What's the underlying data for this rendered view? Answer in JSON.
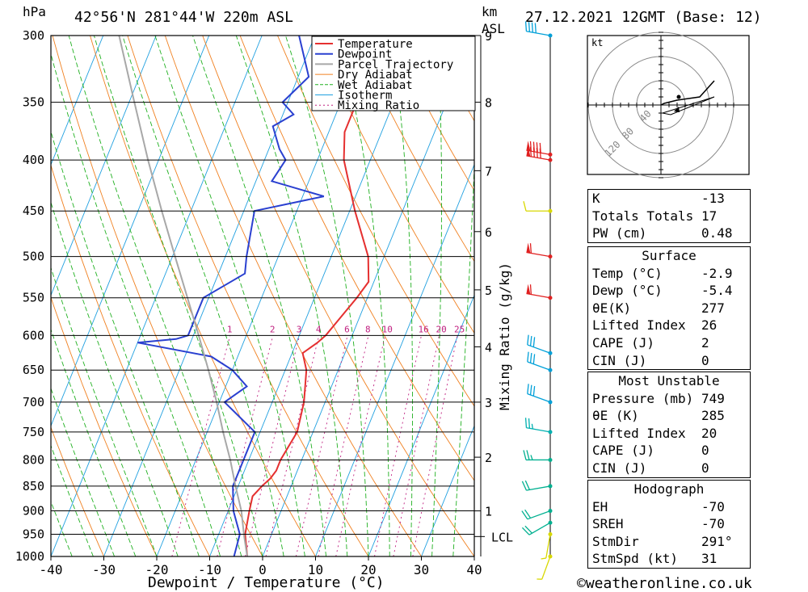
{
  "header": {
    "pressure_unit": "hPa",
    "location": "42°56'N  281°44'W  220m  ASL",
    "km_unit": "km",
    "asl_unit": "ASL",
    "datetime": "27.12.2021  12GMT  (Base: 12)"
  },
  "chart_data": {
    "type": "line",
    "title": "42°56'N  281°44'W  220m  ASL",
    "xlabel": "Dewpoint / Temperature (°C)",
    "ylabel": "hPa",
    "xlim": [
      -40,
      40
    ],
    "ylim": [
      1000,
      300
    ],
    "y_scale": "log",
    "x_ticks": [
      "-40",
      "-30",
      "-20",
      "-10",
      "0",
      "10",
      "20",
      "30",
      "40"
    ],
    "pressure_levels": [
      300,
      350,
      400,
      450,
      500,
      550,
      600,
      650,
      700,
      750,
      800,
      850,
      900,
      950,
      1000
    ],
    "km_ticks": [
      {
        "km": "1",
        "p": 900
      },
      {
        "km": "2",
        "p": 795
      },
      {
        "km": "3",
        "p": 700
      },
      {
        "km": "4",
        "p": 616
      },
      {
        "km": "5",
        "p": 540
      },
      {
        "km": "6",
        "p": 472
      },
      {
        "km": "7",
        "p": 410
      },
      {
        "km": "8",
        "p": 350
      },
      {
        "km": "9",
        "p": 300
      }
    ],
    "lcl_label": "LCL",
    "lcl_pressure": 955,
    "mixing_ratio_label": "Mixing Ratio (g/kg)",
    "mixing_ratio_values": [
      "1",
      "2",
      "3",
      "4",
      "6",
      "8",
      "10",
      "16",
      "20",
      "25"
    ],
    "legend": [
      "Temperature",
      "Dewpoint",
      "Parcel Trajectory",
      "Dry Adiabat",
      "Wet Adiabat",
      "Isotherm",
      "Mixing Ratio"
    ],
    "series": [
      {
        "name": "Temperature",
        "color": "#e53030",
        "points": [
          [
            1000,
            -2.9
          ],
          [
            950,
            -5
          ],
          [
            900,
            -6
          ],
          [
            870,
            -6.5
          ],
          [
            850,
            -5.5
          ],
          [
            835,
            -4.5
          ],
          [
            820,
            -4
          ],
          [
            800,
            -4
          ],
          [
            750,
            -3
          ],
          [
            700,
            -4
          ],
          [
            650,
            -6
          ],
          [
            625,
            -8
          ],
          [
            610,
            -6
          ],
          [
            600,
            -5
          ],
          [
            550,
            -2
          ],
          [
            530,
            -1
          ],
          [
            500,
            -3
          ],
          [
            450,
            -9
          ],
          [
            400,
            -15
          ],
          [
            375,
            -17
          ],
          [
            370,
            -17
          ],
          [
            350,
            -17
          ],
          [
            300,
            -23
          ]
        ]
      },
      {
        "name": "Dewpoint",
        "color": "#2a40d0",
        "points": [
          [
            1000,
            -5.4
          ],
          [
            950,
            -6
          ],
          [
            900,
            -9
          ],
          [
            850,
            -11
          ],
          [
            800,
            -11
          ],
          [
            750,
            -11
          ],
          [
            700,
            -19
          ],
          [
            675,
            -16
          ],
          [
            650,
            -20
          ],
          [
            630,
            -25
          ],
          [
            610,
            -40
          ],
          [
            605,
            -33
          ],
          [
            600,
            -31
          ],
          [
            550,
            -31
          ],
          [
            520,
            -25
          ],
          [
            500,
            -26
          ],
          [
            450,
            -28
          ],
          [
            435,
            -16
          ],
          [
            420,
            -27
          ],
          [
            400,
            -26
          ],
          [
            390,
            -28
          ],
          [
            370,
            -31
          ],
          [
            360,
            -28
          ],
          [
            350,
            -31
          ],
          [
            330,
            -28
          ],
          [
            300,
            -33
          ]
        ]
      },
      {
        "name": "Parcel Trajectory",
        "color": "#a8a8a8",
        "points": [
          [
            1000,
            -2.9
          ],
          [
            955,
            -5
          ],
          [
            900,
            -7.5
          ],
          [
            850,
            -10.5
          ],
          [
            800,
            -13.5
          ],
          [
            750,
            -17
          ],
          [
            700,
            -20.5
          ],
          [
            650,
            -24.5
          ],
          [
            600,
            -29
          ],
          [
            550,
            -34
          ],
          [
            500,
            -39.5
          ],
          [
            450,
            -45.5
          ],
          [
            400,
            -52
          ],
          [
            350,
            -59
          ],
          [
            300,
            -67
          ]
        ]
      }
    ],
    "wind_barbs": [
      {
        "p": 1000,
        "dir": 200,
        "spd": 5,
        "color": "#d8d800"
      },
      {
        "p": 950,
        "dir": 190,
        "spd": 5,
        "color": "#d8d800"
      },
      {
        "p": 925,
        "dir": 240,
        "spd": 20,
        "color": "#00b090"
      },
      {
        "p": 900,
        "dir": 250,
        "spd": 20,
        "color": "#00b090"
      },
      {
        "p": 850,
        "dir": 260,
        "spd": 20,
        "color": "#00b090"
      },
      {
        "p": 800,
        "dir": 270,
        "spd": 25,
        "color": "#00b090"
      },
      {
        "p": 750,
        "dir": 280,
        "spd": 25,
        "color": "#00b0b0"
      },
      {
        "p": 700,
        "dir": 290,
        "spd": 30,
        "color": "#00a0d8"
      },
      {
        "p": 650,
        "dir": 290,
        "spd": 30,
        "color": "#00a0d8"
      },
      {
        "p": 625,
        "dir": 290,
        "spd": 30,
        "color": "#00a0d8"
      },
      {
        "p": 550,
        "dir": 280,
        "spd": 60,
        "color": "#e02020"
      },
      {
        "p": 500,
        "dir": 280,
        "spd": 60,
        "color": "#e02020"
      },
      {
        "p": 450,
        "dir": 270,
        "spd": 10,
        "color": "#d8d800"
      },
      {
        "p": 400,
        "dir": 280,
        "spd": 90,
        "color": "#e02020"
      },
      {
        "p": 395,
        "dir": 280,
        "spd": 90,
        "color": "#e02020"
      },
      {
        "p": 300,
        "dir": 280,
        "spd": 40,
        "color": "#00a0d8"
      }
    ]
  },
  "hodograph": {
    "unit": "kt",
    "ring_labels": [
      "40",
      "80",
      "120"
    ]
  },
  "indices": {
    "rows": [
      {
        "label": "K",
        "value": "-13"
      },
      {
        "label": "Totals Totals",
        "value": "17"
      },
      {
        "label": "PW (cm)",
        "value": "0.48"
      }
    ]
  },
  "surface": {
    "title": "Surface",
    "rows": [
      {
        "label": "Temp (°C)",
        "value": "-2.9"
      },
      {
        "label": "Dewp (°C)",
        "value": "-5.4"
      },
      {
        "label": "θE(K)",
        "value": "277"
      },
      {
        "label": "Lifted Index",
        "value": "26"
      },
      {
        "label": "CAPE (J)",
        "value": "2"
      },
      {
        "label": "CIN (J)",
        "value": "0"
      }
    ]
  },
  "most_unstable": {
    "title": "Most Unstable",
    "rows": [
      {
        "label": "Pressure (mb)",
        "value": "749"
      },
      {
        "label": "θE (K)",
        "value": "285"
      },
      {
        "label": "Lifted Index",
        "value": "20"
      },
      {
        "label": "CAPE (J)",
        "value": "0"
      },
      {
        "label": "CIN (J)",
        "value": "0"
      }
    ]
  },
  "hodograph_table": {
    "title": "Hodograph",
    "rows": [
      {
        "label": "EH",
        "value": "-70"
      },
      {
        "label": "SREH",
        "value": "-70"
      },
      {
        "label": "StmDir",
        "value": "291°"
      },
      {
        "label": "StmSpd (kt)",
        "value": "31"
      }
    ]
  },
  "footer": {
    "copyright": "©weatheronline.co.uk"
  },
  "colors": {
    "temperature": "#e53030",
    "dewpoint": "#2a40d0",
    "parcel": "#a8a8a8",
    "dry_adiabat": "#f08020",
    "wet_adiabat": "#20b020",
    "isotherm": "#20a0e0",
    "mixing_ratio": "#c02080"
  }
}
